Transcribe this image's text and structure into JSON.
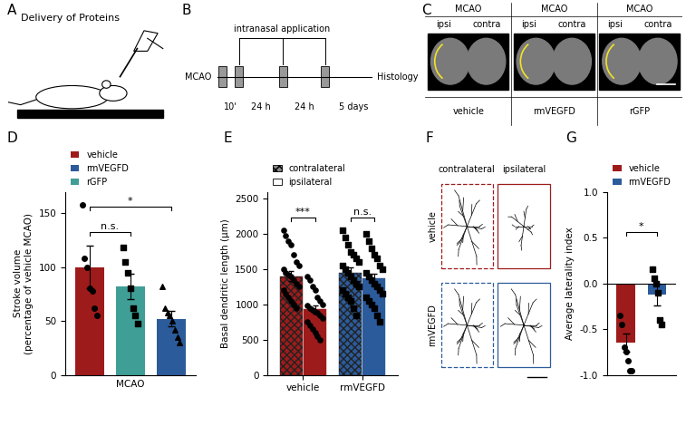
{
  "chart_data": [
    {
      "panel": "D",
      "type": "bar",
      "y_label": "Stroke volume\n(percentage of vehicle MCAO)",
      "x_label": "MCAO",
      "categories": [
        null,
        null,
        null
      ],
      "series": [
        {
          "name": "vehicle",
          "color": "#9e1b1b",
          "marker": "circle",
          "values": [
            100,
            null,
            null
          ],
          "errors": [
            20,
            null,
            null
          ],
          "points": [
            [
              158,
              108,
              100,
              80,
              78,
              62,
              55
            ],
            null,
            null
          ]
        },
        {
          "name": "rmVEGFD",
          "color": "#2b5b9b",
          "marker": "triangle",
          "values": [
            null,
            null,
            52
          ],
          "errors": [
            null,
            null,
            7
          ],
          "points": [
            null,
            null,
            [
              82,
              62,
              58,
              55,
              50,
              42,
              35,
              30
            ]
          ]
        },
        {
          "name": "rGFP",
          "color": "#3f9e95",
          "marker": "square",
          "values": [
            null,
            82,
            null
          ],
          "errors": [
            null,
            12,
            null
          ],
          "points": [
            null,
            [
              118,
              105,
              95,
              80,
              62,
              55,
              48
            ],
            null
          ]
        }
      ],
      "ylim": [
        0,
        170
      ],
      "yticks": [
        0,
        50,
        100,
        150
      ],
      "grid": false,
      "legend": "upper left",
      "tick_labels": "y",
      "annotations": [
        {
          "text": "n.s.",
          "between": [
            0,
            1
          ]
        },
        {
          "text": "*",
          "between": [
            0,
            2
          ]
        }
      ]
    },
    {
      "panel": "E",
      "type": "bar",
      "y_label": "Basal dendritic length (μm)",
      "categories": [
        "vehicle",
        "rmVEGFD"
      ],
      "series": [
        {
          "name": "contralateral",
          "colors": [
            "#9e1b1b",
            "#2b5b9b"
          ],
          "values": [
            1400,
            1450
          ],
          "errors": [
            70,
            70
          ],
          "points": [
            [
              2050,
              1980,
              1900,
              1850,
              1700,
              1600,
              1550,
              1500,
              1450,
              1420,
              1400,
              1350,
              1300,
              1250,
              1200,
              1150,
              1100,
              1050,
              1000,
              950
            ],
            [
              2050,
              1950,
              1850,
              1750,
              1700,
              1650,
              1600,
              1550,
              1500,
              1450,
              1400,
              1350,
              1300,
              1250,
              1200,
              1150,
              1100,
              1050,
              950,
              850
            ]
          ]
        },
        {
          "name": "ipsilateral",
          "colors": [
            "#9e1b1b",
            "#2b5b9b"
          ],
          "values": [
            930,
            1370
          ],
          "errors": [
            60,
            70
          ],
          "points": [
            [
              1400,
              1350,
              1250,
              1200,
              1100,
              1050,
              1000,
              980,
              950,
              920,
              900,
              880,
              850,
              800,
              750,
              700,
              650,
              600,
              550,
              500
            ],
            [
              2000,
              1900,
              1800,
              1700,
              1650,
              1550,
              1500,
              1450,
              1400,
              1350,
              1300,
              1250,
              1200,
              1150,
              1100,
              1050,
              1000,
              950,
              850,
              750
            ]
          ]
        }
      ],
      "ylim": [
        0,
        2600
      ],
      "yticks": [
        0,
        500,
        1000,
        1500,
        2000,
        2500
      ],
      "grid": false,
      "legend": "upper left",
      "annotations": [
        {
          "text": "***",
          "category": 0
        },
        {
          "text": "n.s.",
          "category": 1
        }
      ]
    },
    {
      "panel": "G",
      "type": "bar",
      "y_label": "Average laterality index",
      "categories": [
        null,
        null
      ],
      "series": [
        {
          "name": "vehicle",
          "color": "#9e1b1b",
          "marker": "circle",
          "values": [
            -0.65,
            null
          ],
          "errors": [
            0.1,
            null
          ],
          "points": [
            [
              -0.35,
              -0.45,
              -0.7,
              -0.75,
              -0.85,
              -0.95,
              -0.95
            ],
            null
          ]
        },
        {
          "name": "rmVEGFD",
          "color": "#2b5b9b",
          "marker": "square",
          "values": [
            null,
            -0.12
          ],
          "errors": [
            null,
            0.12
          ],
          "points": [
            null,
            [
              0.15,
              0.05,
              0.0,
              -0.1,
              -0.4,
              -0.45
            ]
          ]
        }
      ],
      "ylim": [
        -1.0,
        1.0
      ],
      "yticks": [
        -1.0,
        -0.5,
        0.0,
        0.5,
        1.0
      ],
      "grid": false,
      "legend": "upper left",
      "tick_labels": "y",
      "annotations": [
        {
          "text": "*",
          "between": [
            0,
            1
          ]
        }
      ]
    }
  ],
  "diagrams": {
    "A": {
      "label": "A",
      "title": "Delivery of Proteins"
    },
    "B": {
      "label": "B",
      "start": "MCAO",
      "bracket": "intranasal application",
      "intervals": [
        "10'",
        "24 h",
        "24 h",
        "5 days"
      ],
      "end": "Histology"
    },
    "C": {
      "label": "C",
      "header": "MCAO",
      "sides": [
        "ipsi",
        "contra"
      ],
      "conditions": [
        "vehicle",
        "rmVEGFD",
        "rGFP"
      ]
    },
    "F": {
      "label": "F",
      "columns": [
        "contralateral",
        "ipsilateral"
      ],
      "rows": [
        "vehicle",
        "rmVEGFD"
      ]
    }
  }
}
